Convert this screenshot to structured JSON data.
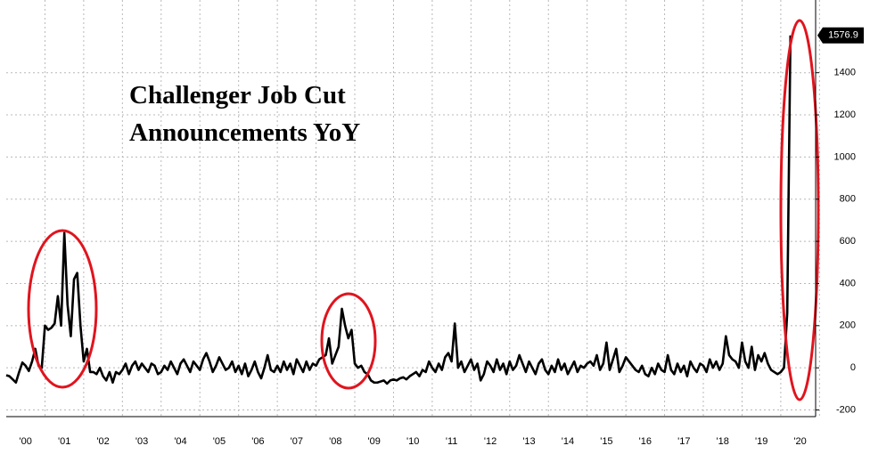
{
  "chart_data": {
    "type": "line",
    "title": "Challenger Job Cut Announcements YoY",
    "x": [
      2000,
      2000.083,
      2000.167,
      2000.25,
      2000.333,
      2000.417,
      2000.5,
      2000.583,
      2000.667,
      2000.75,
      2000.833,
      2000.917,
      2001,
      2001.083,
      2001.167,
      2001.25,
      2001.333,
      2001.417,
      2001.5,
      2001.583,
      2001.667,
      2001.75,
      2001.833,
      2001.917,
      2002,
      2002.083,
      2002.167,
      2002.25,
      2002.333,
      2002.417,
      2002.5,
      2002.583,
      2002.667,
      2002.75,
      2002.833,
      2002.917,
      2003,
      2003.083,
      2003.167,
      2003.25,
      2003.333,
      2003.417,
      2003.5,
      2003.583,
      2003.667,
      2003.75,
      2003.833,
      2003.917,
      2004,
      2004.083,
      2004.167,
      2004.25,
      2004.333,
      2004.417,
      2004.5,
      2004.583,
      2004.667,
      2004.75,
      2004.833,
      2004.917,
      2005,
      2005.083,
      2005.167,
      2005.25,
      2005.333,
      2005.417,
      2005.5,
      2005.583,
      2005.667,
      2005.75,
      2005.833,
      2005.917,
      2006,
      2006.083,
      2006.167,
      2006.25,
      2006.333,
      2006.417,
      2006.5,
      2006.583,
      2006.667,
      2006.75,
      2006.833,
      2006.917,
      2007,
      2007.083,
      2007.167,
      2007.25,
      2007.333,
      2007.417,
      2007.5,
      2007.583,
      2007.667,
      2007.75,
      2007.833,
      2007.917,
      2008,
      2008.083,
      2008.167,
      2008.25,
      2008.333,
      2008.417,
      2008.5,
      2008.583,
      2008.667,
      2008.75,
      2008.833,
      2008.917,
      2009,
      2009.083,
      2009.167,
      2009.25,
      2009.333,
      2009.417,
      2009.5,
      2009.583,
      2009.667,
      2009.75,
      2009.833,
      2009.917,
      2010,
      2010.083,
      2010.167,
      2010.25,
      2010.333,
      2010.417,
      2010.5,
      2010.583,
      2010.667,
      2010.75,
      2010.833,
      2010.917,
      2011,
      2011.083,
      2011.167,
      2011.25,
      2011.333,
      2011.417,
      2011.5,
      2011.583,
      2011.667,
      2011.75,
      2011.833,
      2011.917,
      2012,
      2012.083,
      2012.167,
      2012.25,
      2012.333,
      2012.417,
      2012.5,
      2012.583,
      2012.667,
      2012.75,
      2012.833,
      2012.917,
      2013,
      2013.083,
      2013.167,
      2013.25,
      2013.333,
      2013.417,
      2013.5,
      2013.583,
      2013.667,
      2013.75,
      2013.833,
      2013.917,
      2014,
      2014.083,
      2014.167,
      2014.25,
      2014.333,
      2014.417,
      2014.5,
      2014.583,
      2014.667,
      2014.75,
      2014.833,
      2014.917,
      2015,
      2015.083,
      2015.167,
      2015.25,
      2015.333,
      2015.417,
      2015.5,
      2015.583,
      2015.667,
      2015.75,
      2015.833,
      2015.917,
      2016,
      2016.083,
      2016.167,
      2016.25,
      2016.333,
      2016.417,
      2016.5,
      2016.583,
      2016.667,
      2016.75,
      2016.833,
      2016.917,
      2017,
      2017.083,
      2017.167,
      2017.25,
      2017.333,
      2017.417,
      2017.5,
      2017.583,
      2017.667,
      2017.75,
      2017.833,
      2017.917,
      2018,
      2018.083,
      2018.167,
      2018.25,
      2018.333,
      2018.417,
      2018.5,
      2018.583,
      2018.667,
      2018.75,
      2018.833,
      2018.917,
      2019,
      2019.083,
      2019.167,
      2019.25,
      2019.333,
      2019.417,
      2019.5,
      2019.583,
      2019.667,
      2019.75,
      2019.833,
      2019.917,
      2020,
      2020.083,
      2020.167,
      2020.25
    ],
    "series": [
      {
        "color": "#000000",
        "values": [
          -35,
          -40,
          -55,
          -70,
          -20,
          25,
          10,
          -15,
          30,
          90,
          10,
          0,
          200,
          180,
          190,
          210,
          340,
          200,
          640,
          300,
          150,
          420,
          450,
          200,
          30,
          90,
          -20,
          -20,
          -30,
          0,
          -40,
          -60,
          -20,
          -70,
          -20,
          -30,
          -10,
          20,
          -30,
          10,
          30,
          -10,
          20,
          0,
          -20,
          20,
          10,
          -30,
          -20,
          10,
          -10,
          30,
          0,
          -30,
          20,
          40,
          10,
          -20,
          30,
          10,
          -10,
          40,
          70,
          30,
          -20,
          10,
          50,
          20,
          -10,
          0,
          30,
          -20,
          10,
          -30,
          20,
          -40,
          -10,
          30,
          -20,
          -50,
          0,
          60,
          -10,
          -20,
          10,
          -20,
          30,
          -10,
          20,
          -30,
          40,
          10,
          -20,
          30,
          -10,
          20,
          10,
          40,
          50,
          60,
          140,
          20,
          60,
          100,
          280,
          200,
          140,
          180,
          20,
          0,
          10,
          -20,
          -30,
          -60,
          -70,
          -70,
          -65,
          -60,
          -75,
          -60,
          -55,
          -60,
          -50,
          -45,
          -55,
          -40,
          -30,
          -20,
          -40,
          -10,
          -20,
          30,
          0,
          -20,
          20,
          -10,
          50,
          70,
          30,
          210,
          0,
          30,
          -20,
          10,
          40,
          -10,
          20,
          -60,
          -30,
          30,
          10,
          -20,
          40,
          -10,
          20,
          -30,
          30,
          -10,
          10,
          60,
          20,
          -20,
          30,
          0,
          -30,
          20,
          40,
          -10,
          -30,
          10,
          -20,
          40,
          -10,
          20,
          -30,
          0,
          30,
          -20,
          10,
          0,
          20,
          30,
          10,
          60,
          -10,
          20,
          120,
          -10,
          40,
          90,
          -20,
          10,
          50,
          30,
          10,
          -10,
          -20,
          10,
          -30,
          -40,
          0,
          -30,
          20,
          -10,
          -20,
          60,
          -10,
          -30,
          20,
          -20,
          10,
          -40,
          30,
          0,
          -20,
          20,
          10,
          -20,
          40,
          0,
          30,
          -10,
          20,
          150,
          60,
          40,
          30,
          0,
          120,
          30,
          0,
          100,
          -10,
          60,
          30,
          70,
          20,
          -10,
          -20,
          -30,
          -20,
          0,
          260,
          1576.9
        ]
      }
    ],
    "xlim": [
      2000,
      2020.9
    ],
    "xticks": [
      {
        "value": 2000.5,
        "label": "'00"
      },
      {
        "value": 2001.5,
        "label": "'01"
      },
      {
        "value": 2002.5,
        "label": "'02"
      },
      {
        "value": 2003.5,
        "label": "'03"
      },
      {
        "value": 2004.5,
        "label": "'04"
      },
      {
        "value": 2005.5,
        "label": "'05"
      },
      {
        "value": 2006.5,
        "label": "'06"
      },
      {
        "value": 2007.5,
        "label": "'07"
      },
      {
        "value": 2008.5,
        "label": "'08"
      },
      {
        "value": 2009.5,
        "label": "'09"
      },
      {
        "value": 2010.5,
        "label": "'10"
      },
      {
        "value": 2011.5,
        "label": "'11"
      },
      {
        "value": 2012.5,
        "label": "'12"
      },
      {
        "value": 2013.5,
        "label": "'13"
      },
      {
        "value": 2014.5,
        "label": "'14"
      },
      {
        "value": 2015.5,
        "label": "'15"
      },
      {
        "value": 2016.5,
        "label": "'16"
      },
      {
        "value": 2017.5,
        "label": "'17"
      },
      {
        "value": 2018.5,
        "label": "'18"
      },
      {
        "value": 2019.5,
        "label": "'19"
      },
      {
        "value": 2020.5,
        "label": "'20"
      }
    ],
    "ylim": [
      -240,
      1745
    ],
    "yticks": [
      -200,
      0,
      200,
      400,
      600,
      800,
      1000,
      1200,
      1400
    ],
    "grid": true
  }
}
